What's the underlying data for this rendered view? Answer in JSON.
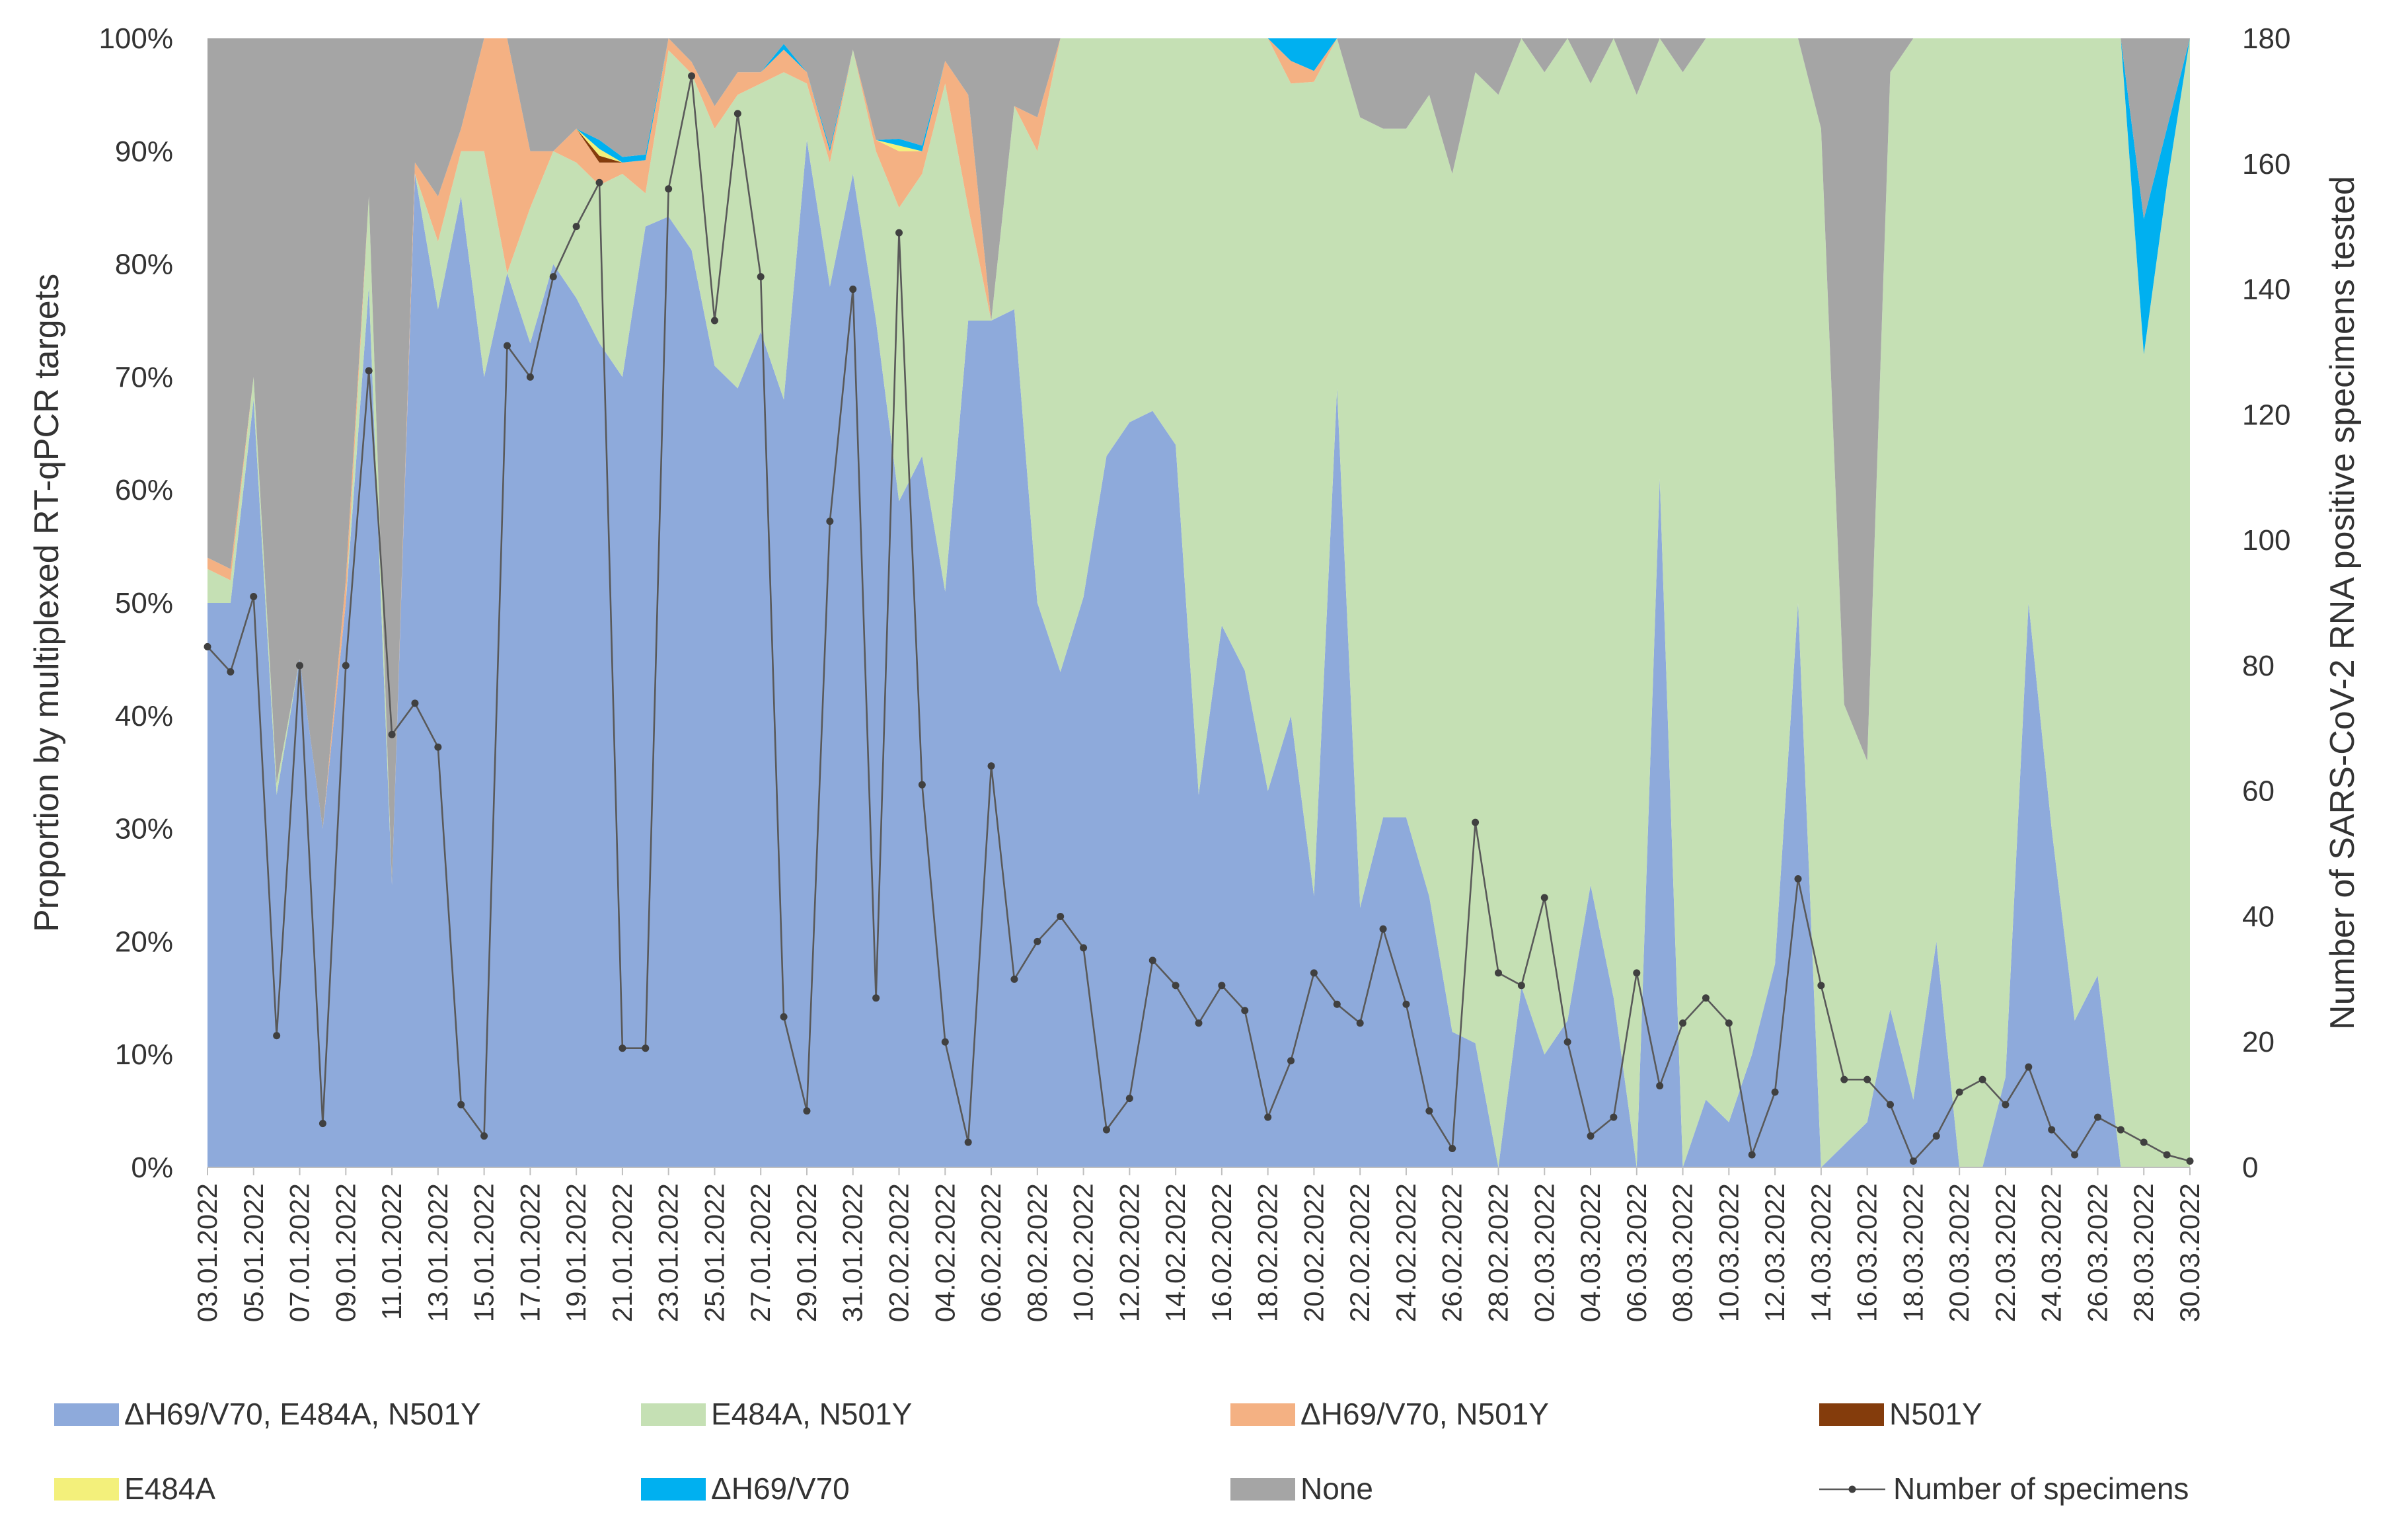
{
  "chart_data": {
    "type": "area",
    "stacked_percent": true,
    "ylabel_left": "Proportion by multiplexed RT-qPCR targets",
    "ylabel_right": "Number of SARS-CoV-2 RNA positive specimens tested",
    "y_left_ticks": [
      "0%",
      "10%",
      "20%",
      "30%",
      "40%",
      "50%",
      "60%",
      "70%",
      "80%",
      "90%",
      "100%"
    ],
    "y_right_ticks": [
      "0",
      "20",
      "40",
      "60",
      "80",
      "100",
      "120",
      "140",
      "160",
      "180"
    ],
    "ylim_left": [
      0,
      100
    ],
    "ylim_right": [
      0,
      180
    ],
    "x_tick_labels": [
      "03.01.2022",
      "05.01.2022",
      "07.01.2022",
      "09.01.2022",
      "11.01.2022",
      "13.01.2022",
      "15.01.2022",
      "17.01.2022",
      "19.01.2022",
      "21.01.2022",
      "23.01.2022",
      "25.01.2022",
      "27.01.2022",
      "29.01.2022",
      "31.01.2022",
      "02.02.2022",
      "04.02.2022",
      "06.02.2022",
      "08.02.2022",
      "10.02.2022",
      "12.02.2022",
      "14.02.2022",
      "16.02.2022",
      "18.02.2022",
      "20.02.2022",
      "22.02.2022",
      "24.02.2022",
      "26.02.2022",
      "28.02.2022",
      "02.03.2022",
      "04.03.2022",
      "06.03.2022",
      "08.03.2022",
      "10.03.2022",
      "12.03.2022",
      "14.03.2022",
      "16.03.2022",
      "18.03.2022",
      "20.03.2022",
      "22.03.2022",
      "24.03.2022",
      "26.03.2022",
      "28.03.2022",
      "30.03.2022"
    ],
    "n_days": 87,
    "series": [
      {
        "name": "ΔH69/V70, E484A, N501Y",
        "color": "#8eaadb",
        "type": "area",
        "values": [
          50,
          50,
          68,
          33,
          45,
          30,
          50,
          78,
          25,
          88,
          76,
          86,
          70,
          80,
          73,
          80,
          77,
          73,
          70,
          85,
          80,
          78,
          71,
          69,
          74,
          68,
          91,
          78,
          88,
          75,
          59,
          63,
          51,
          75,
          75,
          76,
          50,
          43,
          50,
          63,
          66,
          67,
          64,
          33,
          48,
          44,
          31,
          40,
          25,
          69,
          23,
          31,
          31,
          24,
          12,
          11,
          0,
          16,
          10,
          13,
          25,
          15,
          0,
          61,
          0,
          6,
          4,
          10,
          18,
          50,
          0,
          2,
          4,
          14,
          6,
          20,
          0,
          0,
          8,
          50,
          30,
          13,
          17,
          0,
          0,
          0,
          0
        ]
      },
      {
        "name": "E484A, N501Y",
        "color": "#c5e0b4",
        "type": "area",
        "values": [
          3,
          2,
          2,
          1,
          0,
          0,
          0,
          8,
          0,
          0,
          6,
          4,
          20,
          0,
          12,
          10,
          12,
          14,
          18,
          3,
          14,
          15,
          21,
          26,
          22,
          29,
          5,
          11,
          11,
          15,
          26,
          25,
          45,
          10,
          0,
          18,
          40,
          55,
          49,
          37,
          34,
          33,
          36,
          67,
          52,
          56,
          62,
          56,
          75,
          31,
          70,
          61,
          61,
          71,
          76,
          86,
          95,
          84,
          87,
          87,
          71,
          85,
          95,
          39,
          97,
          94,
          96,
          90,
          82,
          50,
          92,
          39,
          32,
          83,
          94,
          80,
          100,
          100,
          92,
          50,
          70,
          87,
          83,
          100,
          72,
          87,
          100
        ]
      },
      {
        "name": "ΔH69/V70, N501Y",
        "color": "#f4b183",
        "type": "area",
        "values": [
          1,
          1,
          0,
          0,
          0,
          0,
          2,
          0,
          0,
          1,
          4,
          2,
          10,
          21,
          5,
          0,
          3,
          2,
          1,
          3,
          1,
          1,
          2,
          2,
          1,
          2,
          1,
          1,
          0,
          1,
          5,
          2,
          2,
          10,
          0,
          0,
          3,
          0,
          0,
          0,
          0,
          0,
          0,
          0,
          0,
          0,
          0,
          2,
          1,
          0,
          0,
          0,
          0,
          0,
          0,
          0,
          0,
          0,
          0,
          0,
          0,
          0,
          0,
          0,
          0,
          0,
          0,
          0,
          0,
          0,
          0,
          0,
          0,
          0,
          0,
          0,
          0,
          0,
          0,
          0,
          0,
          0,
          0,
          0,
          0,
          0,
          0
        ]
      },
      {
        "name": "N501Y",
        "color": "#843c0c",
        "type": "area",
        "values": [
          0,
          0,
          0,
          0,
          0,
          0,
          0,
          0,
          0,
          0,
          0,
          0,
          0,
          0,
          0,
          0,
          0,
          0.6,
          0,
          0,
          0,
          0,
          0,
          0,
          0,
          0,
          0,
          0,
          0,
          0,
          0,
          0,
          0,
          0,
          0,
          0,
          0,
          0,
          0,
          0,
          0,
          0,
          0,
          0,
          0,
          0,
          0,
          0,
          0,
          0,
          0,
          0,
          0,
          0,
          0,
          0,
          0,
          0,
          0,
          0,
          0,
          0,
          0,
          0,
          0,
          0,
          0,
          0,
          0,
          0,
          0,
          0,
          0,
          0,
          0,
          0,
          0,
          0,
          0,
          0,
          0,
          0,
          0,
          0,
          0,
          0,
          0
        ]
      },
      {
        "name": "E484A",
        "color": "#f3f07b",
        "type": "area",
        "values": [
          0,
          0,
          0,
          0,
          0,
          0,
          0,
          0,
          0,
          0,
          0,
          0,
          0,
          0,
          0,
          0,
          0,
          0.6,
          0,
          0,
          0,
          0,
          0,
          0,
          0,
          0,
          0,
          0,
          0,
          0,
          0.5,
          0,
          0,
          0,
          0,
          0,
          0,
          0,
          0,
          0,
          0,
          0,
          0,
          0,
          0,
          0,
          0,
          0,
          0,
          0,
          0,
          0,
          0,
          0,
          0,
          0,
          0,
          0,
          0,
          0,
          0,
          0,
          0,
          0,
          0,
          0,
          0,
          0,
          0,
          0,
          0,
          0,
          0,
          0,
          0,
          0,
          0,
          0,
          0,
          0,
          0,
          0,
          0,
          0,
          0,
          0,
          0
        ]
      },
      {
        "name": "ΔH69/V70",
        "color": "#00b0f0",
        "type": "area",
        "values": [
          0,
          0,
          0,
          0,
          0,
          0,
          0,
          0,
          0,
          0,
          0,
          0,
          0,
          0,
          0,
          0,
          0,
          0.8,
          0.5,
          0.5,
          0,
          0,
          0,
          0,
          0,
          0.5,
          0,
          0.3,
          0,
          0,
          0.6,
          0.5,
          0,
          0,
          0,
          0,
          0,
          0,
          0,
          0,
          0,
          0,
          0,
          0,
          0,
          0,
          0,
          2,
          3,
          0,
          0,
          0,
          0,
          0,
          0,
          0,
          0,
          0,
          0,
          0,
          0,
          0,
          0,
          0,
          0,
          0,
          0,
          0,
          0,
          0,
          0,
          0,
          0,
          0,
          0,
          0,
          0,
          0,
          0,
          0,
          0,
          0,
          0,
          0,
          12,
          5,
          0
        ]
      },
      {
        "name": "None",
        "color": "#a5a5a5",
        "type": "area",
        "values": [
          46,
          47,
          30,
          66,
          55,
          70,
          48,
          14,
          75,
          11,
          14,
          8,
          0,
          0,
          10,
          10,
          8,
          9.0,
          10.5,
          10.5,
          0,
          2,
          6,
          3,
          3,
          0.5,
          3,
          9.7,
          1,
          9,
          8.9,
          9.5,
          2,
          5,
          25,
          6,
          7,
          0,
          0,
          0,
          0,
          0,
          0,
          0,
          0,
          0,
          0,
          0,
          0,
          0,
          7,
          8,
          8,
          5,
          12,
          3,
          5,
          0,
          3,
          0,
          4,
          0,
          5,
          0,
          3,
          0,
          0,
          0,
          0,
          0,
          8,
          59,
          64,
          3,
          0,
          0,
          0,
          0,
          0,
          0,
          0,
          0,
          0,
          0,
          16,
          8,
          0
        ]
      },
      {
        "name": "Number of specimens",
        "color": "#595959",
        "type": "line",
        "axis": "right",
        "values": [
          83,
          79,
          91,
          21,
          80,
          7,
          80,
          127,
          69,
          74,
          67,
          10,
          5,
          131,
          126,
          142,
          150,
          157,
          19,
          19,
          156,
          174,
          135,
          168,
          142,
          24,
          9,
          103,
          140,
          27,
          149,
          61,
          20,
          4,
          64,
          30,
          36,
          40,
          35,
          6,
          11,
          33,
          29,
          23,
          29,
          25,
          8,
          17,
          31,
          26,
          23,
          38,
          26,
          9,
          3,
          55,
          31,
          29,
          43,
          20,
          5,
          8,
          31,
          13,
          23,
          27,
          23,
          2,
          12,
          46,
          29,
          14,
          14,
          10,
          1,
          5,
          12,
          14,
          10,
          16,
          6,
          2,
          8,
          6,
          4,
          2,
          1
        ]
      }
    ]
  }
}
